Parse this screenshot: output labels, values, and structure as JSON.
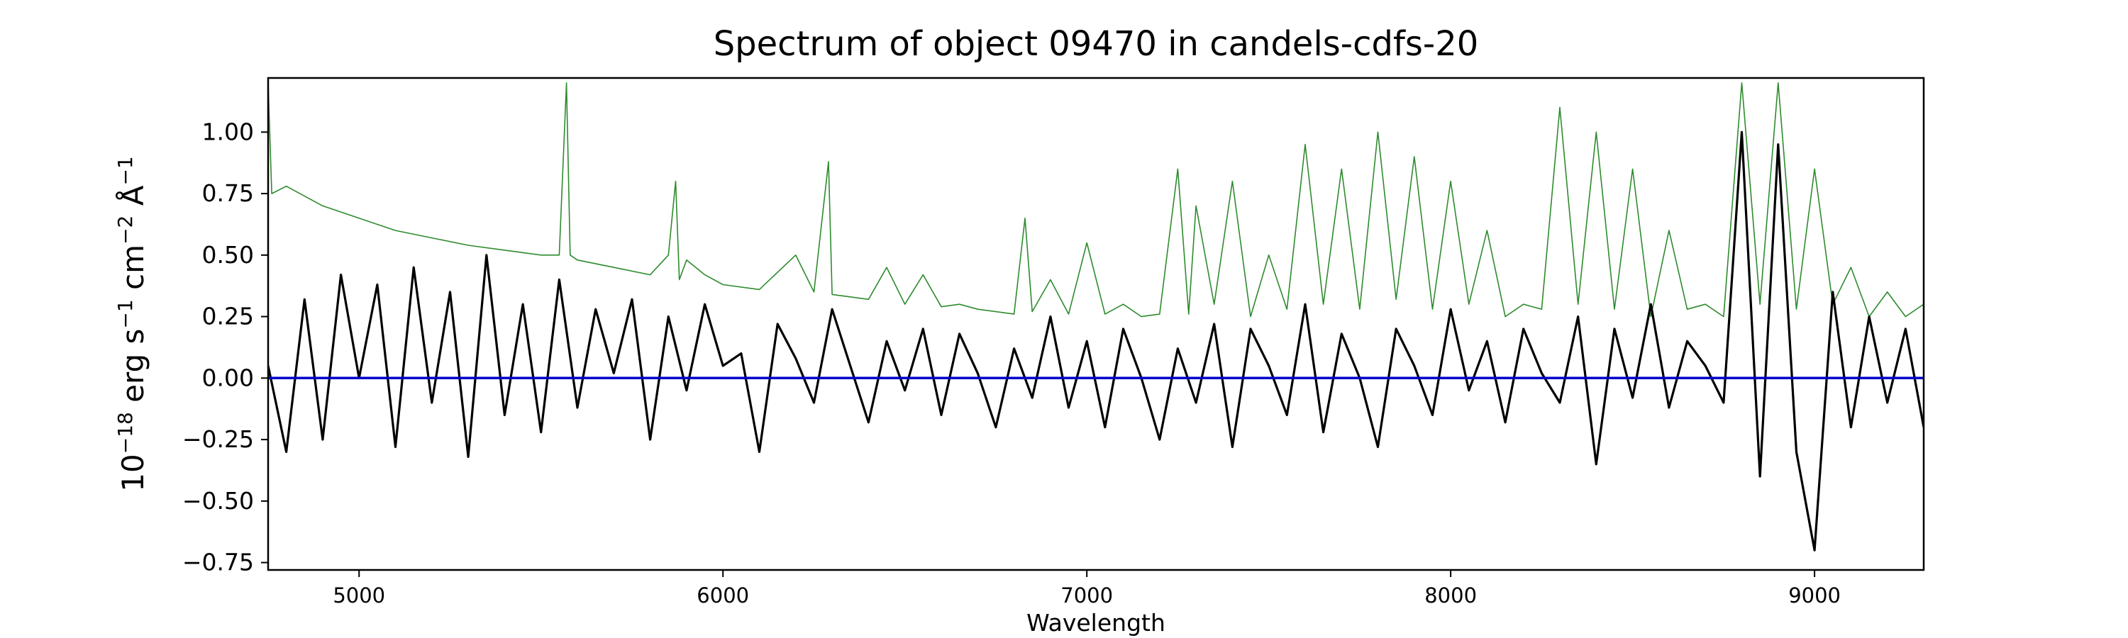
{
  "chart_data": {
    "type": "line",
    "title": "Spectrum of object 09470 in candels-cdfs-20",
    "xlabel": "Wavelength",
    "ylabel": {
      "base": "10",
      "exp1": "−18",
      "unit1": "erg s",
      "exp2": "−1",
      "unit2": "cm",
      "exp3": "−2",
      "unit3": "Å",
      "exp4": "−1"
    },
    "xlim": [
      4750,
      9300
    ],
    "ylim": [
      -0.78,
      1.22
    ],
    "xticks": [
      5000,
      6000,
      7000,
      8000,
      9000
    ],
    "yticks": [
      -0.75,
      -0.5,
      -0.25,
      0.0,
      0.25,
      0.5,
      0.75,
      1.0
    ],
    "ytick_labels": [
      "−0.75",
      "−0.50",
      "−0.25",
      "0.00",
      "0.25",
      "0.50",
      "0.75",
      "1.00"
    ],
    "grid": false,
    "series": [
      {
        "role": "flux",
        "color": "#000000",
        "x": [
          4750,
          4800,
          4850,
          4900,
          4950,
          5000,
          5050,
          5100,
          5150,
          5200,
          5250,
          5300,
          5350,
          5400,
          5450,
          5500,
          5550,
          5600,
          5650,
          5700,
          5750,
          5800,
          5850,
          5900,
          5950,
          6000,
          6050,
          6100,
          6150,
          6200,
          6250,
          6300,
          6350,
          6400,
          6450,
          6500,
          6550,
          6600,
          6650,
          6700,
          6750,
          6800,
          6850,
          6900,
          6950,
          7000,
          7050,
          7100,
          7150,
          7200,
          7250,
          7300,
          7350,
          7400,
          7450,
          7500,
          7550,
          7600,
          7650,
          7700,
          7750,
          7800,
          7850,
          7900,
          7950,
          8000,
          8050,
          8100,
          8150,
          8200,
          8250,
          8300,
          8350,
          8400,
          8450,
          8500,
          8550,
          8600,
          8650,
          8700,
          8750,
          8800,
          8850,
          8900,
          8950,
          9000,
          9050,
          9100,
          9150,
          9200,
          9250,
          9300
        ],
        "y": [
          0.05,
          -0.3,
          0.32,
          -0.25,
          0.42,
          0.0,
          0.38,
          -0.28,
          0.45,
          -0.1,
          0.35,
          -0.32,
          0.5,
          -0.15,
          0.3,
          -0.22,
          0.4,
          -0.12,
          0.28,
          0.02,
          0.32,
          -0.25,
          0.25,
          -0.05,
          0.3,
          0.05,
          0.1,
          -0.3,
          0.22,
          0.08,
          -0.1,
          0.28,
          0.05,
          -0.18,
          0.15,
          -0.05,
          0.2,
          -0.15,
          0.18,
          0.02,
          -0.2,
          0.12,
          -0.08,
          0.25,
          -0.12,
          0.15,
          -0.2,
          0.2,
          0.0,
          -0.25,
          0.12,
          -0.1,
          0.22,
          -0.28,
          0.2,
          0.05,
          -0.15,
          0.3,
          -0.22,
          0.18,
          0.0,
          -0.28,
          0.2,
          0.05,
          -0.15,
          0.28,
          -0.05,
          0.15,
          -0.18,
          0.2,
          0.02,
          -0.1,
          0.25,
          -0.35,
          0.2,
          -0.08,
          0.3,
          -0.12,
          0.15,
          0.05,
          -0.1,
          1.0,
          -0.4,
          0.95,
          -0.3,
          -0.7,
          0.35,
          -0.2,
          0.25,
          -0.1,
          0.2,
          -0.2
        ]
      },
      {
        "role": "model",
        "color": "#2e8b2e",
        "x": [
          4750,
          4760,
          4800,
          4850,
          4900,
          5000,
          5100,
          5200,
          5300,
          5400,
          5500,
          5550,
          5570,
          5580,
          5600,
          5700,
          5800,
          5850,
          5870,
          5880,
          5900,
          5950,
          6000,
          6100,
          6200,
          6250,
          6290,
          6300,
          6350,
          6400,
          6450,
          6500,
          6550,
          6600,
          6650,
          6700,
          6800,
          6830,
          6850,
          6900,
          6950,
          7000,
          7050,
          7100,
          7150,
          7200,
          7250,
          7280,
          7300,
          7350,
          7400,
          7450,
          7500,
          7550,
          7600,
          7650,
          7700,
          7750,
          7800,
          7850,
          7900,
          7950,
          8000,
          8050,
          8100,
          8150,
          8200,
          8250,
          8300,
          8350,
          8400,
          8450,
          8500,
          8550,
          8600,
          8650,
          8700,
          8750,
          8800,
          8850,
          8900,
          8950,
          9000,
          9050,
          9100,
          9150,
          9200,
          9250,
          9300
        ],
        "y": [
          1.2,
          0.75,
          0.78,
          0.74,
          0.7,
          0.65,
          0.6,
          0.57,
          0.54,
          0.52,
          0.5,
          0.5,
          1.2,
          0.5,
          0.48,
          0.45,
          0.42,
          0.5,
          0.8,
          0.4,
          0.48,
          0.42,
          0.38,
          0.36,
          0.5,
          0.35,
          0.88,
          0.34,
          0.33,
          0.32,
          0.45,
          0.3,
          0.42,
          0.29,
          0.3,
          0.28,
          0.26,
          0.65,
          0.27,
          0.4,
          0.26,
          0.55,
          0.26,
          0.3,
          0.25,
          0.26,
          0.85,
          0.26,
          0.7,
          0.3,
          0.8,
          0.25,
          0.5,
          0.28,
          0.95,
          0.3,
          0.85,
          0.28,
          1.0,
          0.32,
          0.9,
          0.28,
          0.8,
          0.3,
          0.6,
          0.25,
          0.3,
          0.28,
          1.1,
          0.3,
          1.0,
          0.28,
          0.85,
          0.25,
          0.6,
          0.28,
          0.3,
          0.25,
          1.2,
          0.3,
          1.2,
          0.28,
          0.85,
          0.3,
          0.45,
          0.25,
          0.35,
          0.25,
          0.3
        ]
      },
      {
        "role": "zero",
        "color": "#0000cc",
        "x": [
          4750,
          9300
        ],
        "y": [
          0,
          0
        ]
      }
    ]
  }
}
